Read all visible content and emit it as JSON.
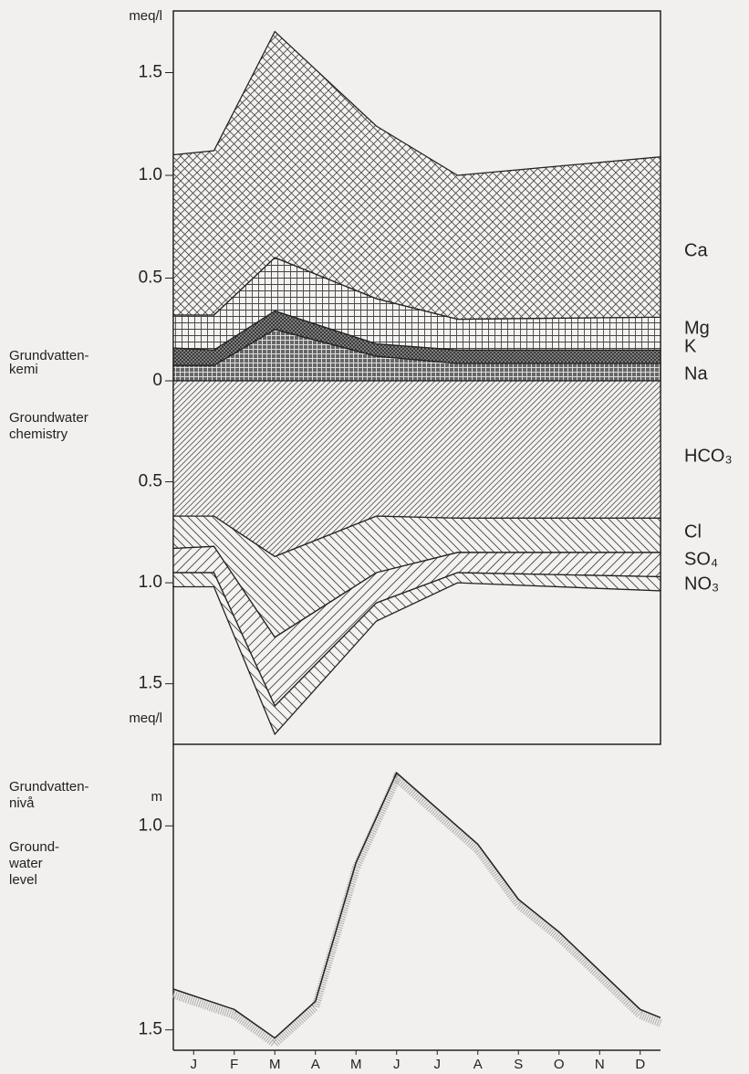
{
  "chart_data": [
    {
      "type": "area",
      "stacked": true,
      "ylabel": "meq/l",
      "annotations": [
        [
          "Grundvatten-",
          "kemi"
        ],
        [
          "Groundwater",
          "chemistry"
        ]
      ],
      "x": [
        0,
        1,
        2.5,
        5,
        7,
        12
      ],
      "xlim": [
        0,
        12
      ],
      "ylim": [
        0,
        1.8
      ],
      "yticks": [
        0,
        0.5,
        {
          "value": 1,
          "label": "1.0"
        },
        1.5
      ],
      "series": [
        {
          "name": "Na",
          "values": [
            0.075,
            0.075,
            0.25,
            0.12,
            0.085,
            0.085
          ]
        },
        {
          "name": "K",
          "values": [
            0.085,
            0.075,
            0.09,
            0.06,
            0.065,
            0.065
          ]
        },
        {
          "name": "Mg",
          "values": [
            0.16,
            0.17,
            0.26,
            0.22,
            0.15,
            0.16
          ]
        },
        {
          "name": "Ca",
          "values": [
            0.78,
            0.8,
            1.1,
            0.84,
            0.7,
            0.78
          ]
        }
      ]
    },
    {
      "type": "area",
      "stacked": true,
      "inverted": true,
      "ylabel": "meq/l",
      "x": [
        0,
        1,
        2.5,
        5,
        7,
        12
      ],
      "xlim": [
        0,
        12
      ],
      "ylim": [
        0,
        1.8
      ],
      "yticks": [
        0.5,
        {
          "value": 1,
          "label": "1.0"
        },
        1.5
      ],
      "series": [
        {
          "name": "HCO₃",
          "values": [
            0.67,
            0.67,
            0.87,
            0.67,
            0.68,
            0.68
          ]
        },
        {
          "name": "Cl",
          "values": [
            0.16,
            0.15,
            0.4,
            0.28,
            0.17,
            0.17
          ]
        },
        {
          "name": "SO₄",
          "values": [
            0.12,
            0.13,
            0.34,
            0.15,
            0.1,
            0.12
          ]
        },
        {
          "name": "NO₃",
          "values": [
            0.07,
            0.07,
            0.14,
            0.09,
            0.05,
            0.07
          ]
        }
      ]
    },
    {
      "type": "line",
      "inverted": true,
      "ylabel": "m",
      "annotations": [
        [
          "Grundvatten-",
          "nivå"
        ],
        [
          "Ground-",
          "water",
          "level"
        ]
      ],
      "x": [
        0,
        1.5,
        2.5,
        3.5,
        4.5,
        5.5,
        7.5,
        8.5,
        9.5,
        11.5,
        12
      ],
      "values": [
        1.4,
        1.45,
        1.52,
        1.43,
        1.09,
        0.87,
        1.045,
        1.18,
        1.26,
        1.45,
        1.47
      ],
      "xlim": [
        0,
        12
      ],
      "ylim": [
        0.8,
        1.55
      ],
      "yticks": [
        {
          "value": 1,
          "label": "1.0"
        },
        1.5
      ],
      "xticks": [
        {
          "value": 0.5,
          "label": "J"
        },
        {
          "value": 1.5,
          "label": "F"
        },
        {
          "value": 2.5,
          "label": "M"
        },
        {
          "value": 3.5,
          "label": "A"
        },
        {
          "value": 4.5,
          "label": "M"
        },
        {
          "value": 5.5,
          "label": "J"
        },
        {
          "value": 6.5,
          "label": "J"
        },
        {
          "value": 7.5,
          "label": "A"
        },
        {
          "value": 8.5,
          "label": "S"
        },
        {
          "value": 9.5,
          "label": "O"
        },
        {
          "value": 10.5,
          "label": "N"
        },
        {
          "value": 11.5,
          "label": "D"
        }
      ]
    }
  ]
}
